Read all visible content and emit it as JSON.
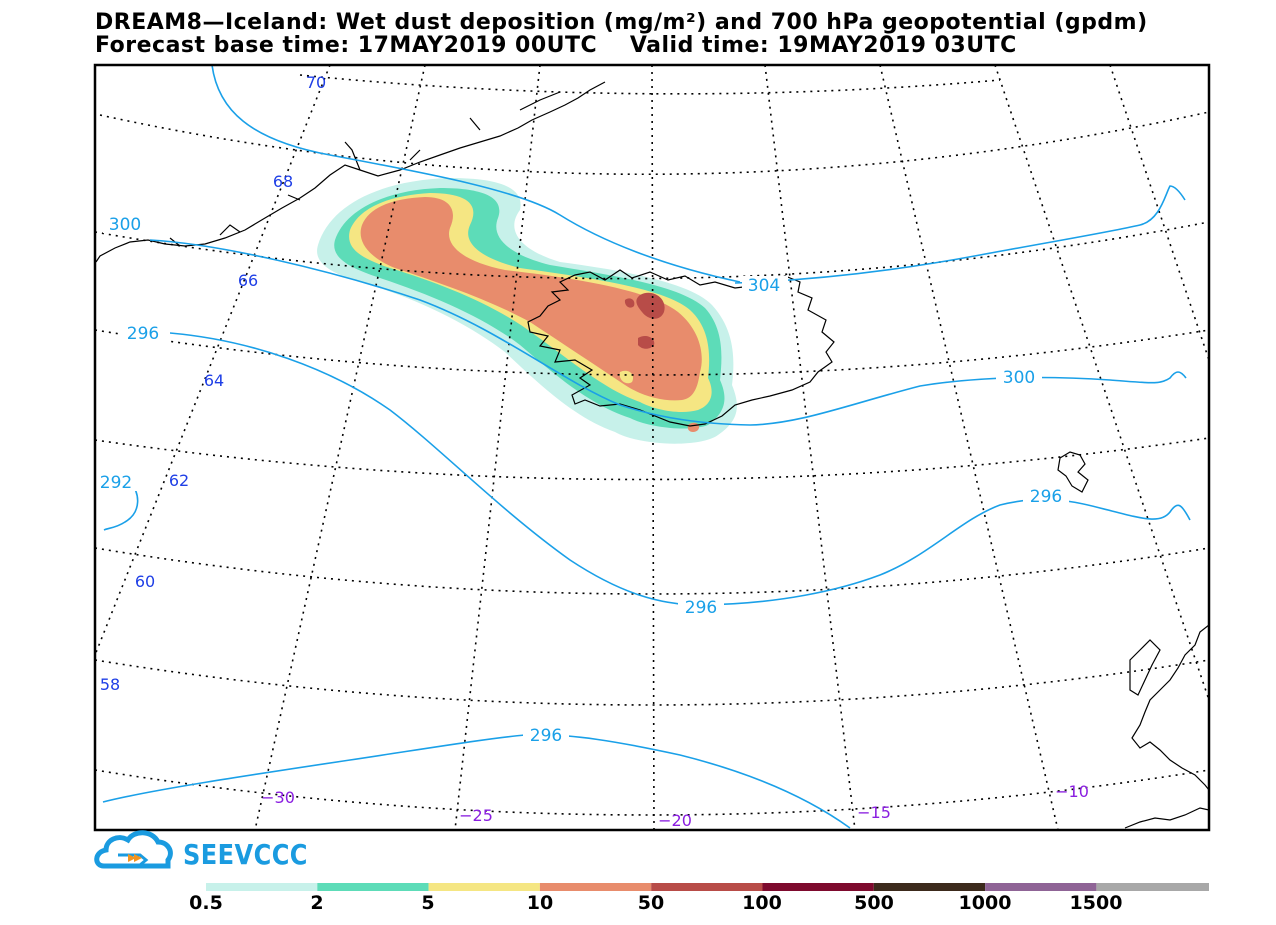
{
  "title": {
    "line1": "DREAM8—Iceland: Wet dust deposition (mg/m²) and 700 hPa geopotential (gpdm)",
    "line2": "Forecast base time: 17MAY2019 00UTC    Valid time: 19MAY2019 03UTC"
  },
  "map": {
    "latitude_labels": [
      "70",
      "68",
      "66",
      "64",
      "62",
      "60",
      "58"
    ],
    "longitude_labels": [
      "−30",
      "−25",
      "−20",
      "−15",
      "−10"
    ],
    "contour_labels": [
      "300",
      "304",
      "296",
      "300",
      "292",
      "296",
      "296",
      "296"
    ],
    "colors": {
      "latitude_label": "#1f3fe6",
      "longitude_label": "#8a1ee0",
      "contour": "#1aa0e8"
    }
  },
  "logo": {
    "text": "SEEVCCC"
  },
  "legend": {
    "colors": [
      "#c7f1ea",
      "#5ddcb8",
      "#f5e683",
      "#e88c6c",
      "#b84c48",
      "#7e0a2e",
      "#3c2a1c",
      "#8f6496",
      "#a8a8a8"
    ],
    "labels": [
      "0.5",
      "2",
      "5",
      "10",
      "50",
      "100",
      "500",
      "1000",
      "1500"
    ]
  }
}
